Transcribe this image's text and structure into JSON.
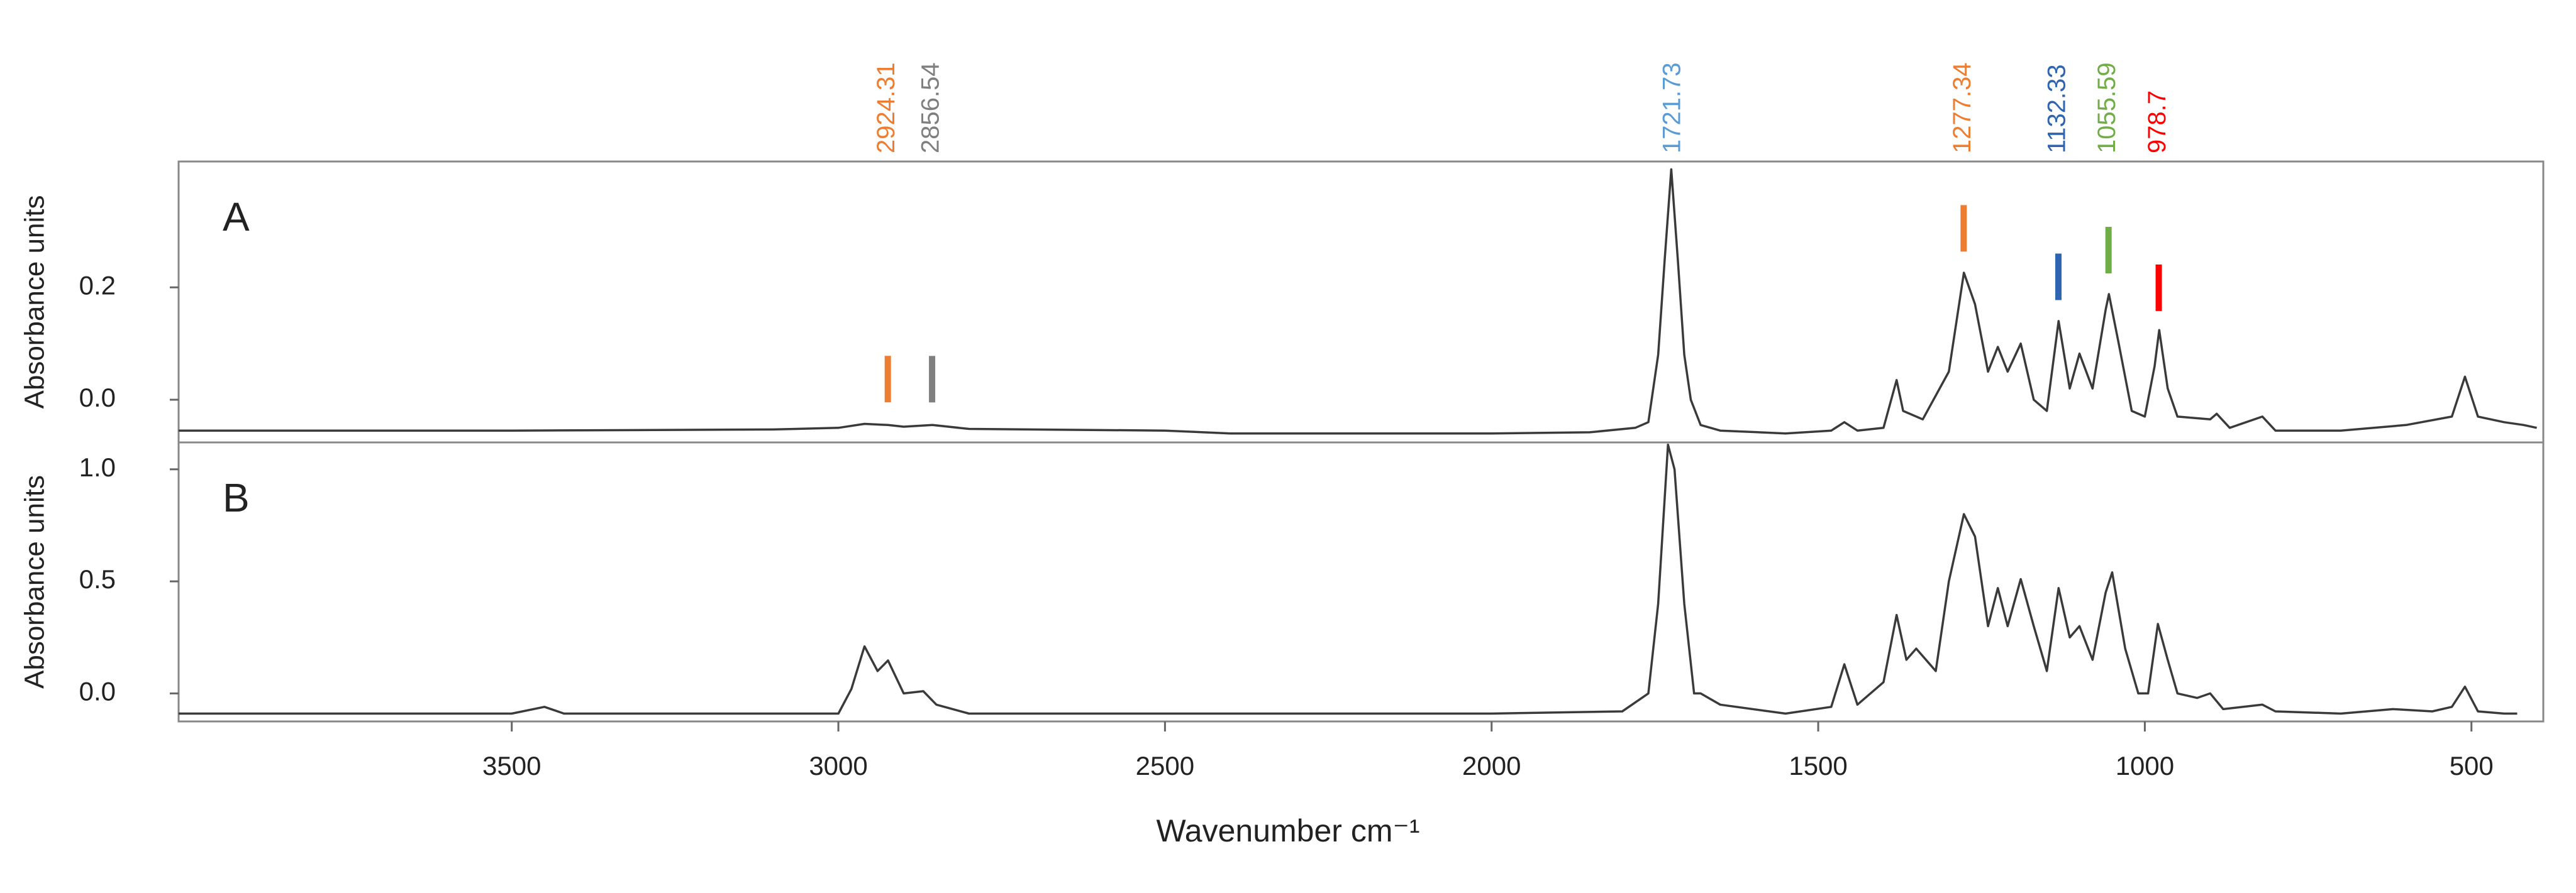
{
  "chart_data": [
    {
      "type": "line",
      "label": "A",
      "ylabel": "Absorbance units",
      "xlim": [
        4010,
        390
      ],
      "ylim": [
        -0.076,
        0.424
      ],
      "yticks": [
        {
          "value": 0,
          "label": "0.0"
        },
        0.2
      ],
      "x": [
        4010,
        3500,
        3100,
        3000,
        2960,
        2924,
        2900,
        2856,
        2800,
        2500,
        2400,
        2000,
        1850,
        1780,
        1760,
        1745,
        1735,
        1725,
        1715,
        1705,
        1695,
        1680,
        1650,
        1550,
        1480,
        1460,
        1440,
        1400,
        1380,
        1370,
        1340,
        1300,
        1277,
        1260,
        1240,
        1225,
        1210,
        1190,
        1170,
        1150,
        1132,
        1115,
        1100,
        1080,
        1060,
        1055,
        1040,
        1020,
        1000,
        985,
        978,
        965,
        950,
        900,
        890,
        870,
        820,
        800,
        700,
        600,
        530,
        510,
        490,
        450,
        420,
        400
      ],
      "series": [
        {
          "color": "#3a3a3a",
          "values": [
            -0.055,
            -0.055,
            -0.053,
            -0.05,
            -0.043,
            -0.045,
            -0.048,
            -0.045,
            -0.052,
            -0.055,
            -0.06,
            -0.06,
            -0.058,
            -0.05,
            -0.04,
            0.08,
            0.25,
            0.41,
            0.25,
            0.08,
            0,
            -0.045,
            -0.055,
            -0.06,
            -0.055,
            -0.04,
            -0.055,
            -0.05,
            0.035,
            -0.02,
            -0.035,
            0.05,
            0.226,
            0.17,
            0.05,
            0.094,
            0.05,
            0.1,
            0,
            -0.02,
            0.14,
            0.02,
            0.082,
            0.02,
            0.16,
            0.188,
            0.1,
            -0.02,
            -0.03,
            0.06,
            0.124,
            0.02,
            -0.03,
            -0.035,
            -0.025,
            -0.05,
            -0.03,
            -0.055,
            -0.055,
            -0.045,
            -0.03,
            0.041,
            -0.03,
            -0.04,
            -0.045,
            -0.05
          ]
        }
      ],
      "annotations": [
        {
          "value": 2924.31,
          "color": "#ed7d31",
          "marker": true
        },
        {
          "value": 2856.54,
          "color": "#7f7f7f",
          "marker": true
        },
        {
          "value": 1721.73,
          "color": "#5b9bd5",
          "marker": false
        },
        {
          "value": 1277.34,
          "color": "#ed7d31",
          "marker": true
        },
        {
          "value": 1132.33,
          "color": "#2e64b0",
          "marker": true
        },
        {
          "value": 1055.59,
          "color": "#70ad47",
          "marker": true
        },
        {
          "value": 978.7,
          "color": "#ff0000",
          "marker": true
        }
      ]
    },
    {
      "type": "line",
      "label": "B",
      "ylabel": "Absorbance units",
      "xlabel": "Wavenumber cm⁻¹",
      "xlim": [
        4010,
        390
      ],
      "xticks": [
        3500,
        3000,
        2500,
        2000,
        1500,
        1000,
        500
      ],
      "ylim": [
        -0.125,
        1.12
      ],
      "yticks": [
        {
          "value": 0,
          "label": "0.0"
        },
        0.5,
        {
          "value": 1,
          "label": "1.0"
        }
      ],
      "x": [
        4010,
        3500,
        3450,
        3420,
        3000,
        2980,
        2960,
        2940,
        2924,
        2900,
        2870,
        2850,
        2800,
        2000,
        1800,
        1760,
        1745,
        1730,
        1720,
        1705,
        1690,
        1680,
        1650,
        1550,
        1480,
        1460,
        1440,
        1400,
        1380,
        1365,
        1350,
        1320,
        1300,
        1277,
        1260,
        1240,
        1225,
        1210,
        1190,
        1170,
        1150,
        1132,
        1115,
        1100,
        1080,
        1060,
        1050,
        1030,
        1010,
        995,
        980,
        965,
        950,
        920,
        900,
        880,
        820,
        800,
        700,
        620,
        560,
        530,
        510,
        490,
        450,
        430
      ],
      "series": [
        {
          "color": "#3a3a3a",
          "values": [
            -0.09,
            -0.09,
            -0.06,
            -0.09,
            -0.09,
            0.02,
            0.21,
            0.1,
            0.147,
            0,
            0.01,
            -0.05,
            -0.09,
            -0.09,
            -0.08,
            0,
            0.4,
            1.11,
            1,
            0.4,
            0,
            0,
            -0.05,
            -0.09,
            -0.06,
            0.13,
            -0.05,
            0.05,
            0.35,
            0.15,
            0.2,
            0.1,
            0.5,
            0.8,
            0.7,
            0.3,
            0.47,
            0.3,
            0.51,
            0.3,
            0.1,
            0.47,
            0.25,
            0.3,
            0.15,
            0.45,
            0.54,
            0.2,
            0,
            0,
            0.31,
            0.15,
            0,
            -0.02,
            0,
            -0.07,
            -0.05,
            -0.08,
            -0.09,
            -0.07,
            -0.08,
            -0.06,
            0.03,
            -0.08,
            -0.09,
            -0.09
          ]
        }
      ]
    }
  ]
}
